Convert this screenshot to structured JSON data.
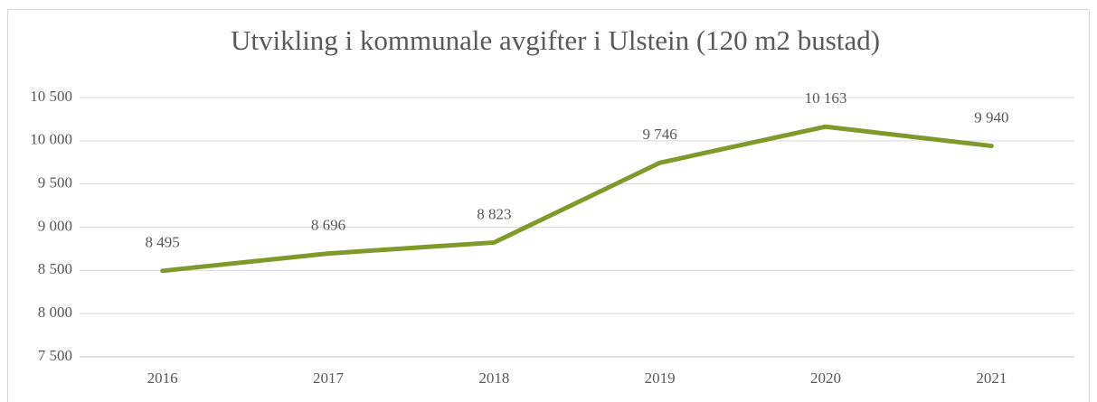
{
  "chart_data": {
    "type": "line",
    "title": "Utvikling i kommunale avgifter i Ulstein (120 m2 bustad)",
    "categories": [
      "2016",
      "2017",
      "2018",
      "2019",
      "2020",
      "2021"
    ],
    "values": [
      8495,
      8696,
      8823,
      9746,
      10163,
      9940
    ],
    "value_labels": [
      "8 495",
      "8 696",
      "8 823",
      "9 746",
      "10 163",
      "9 940"
    ],
    "color": "#7f9a2a",
    "ylim": [
      7500,
      10500
    ],
    "yticks": [
      {
        "value": 7500,
        "label": "7 500"
      },
      {
        "value": 8000,
        "label": "8 000"
      },
      {
        "value": 8500,
        "label": "8 500"
      },
      {
        "value": 9000,
        "label": "9 000"
      },
      {
        "value": 9500,
        "label": "9 500"
      },
      {
        "value": 10000,
        "label": "10 000"
      },
      {
        "value": 10500,
        "label": "10 500"
      }
    ],
    "grid": true
  }
}
